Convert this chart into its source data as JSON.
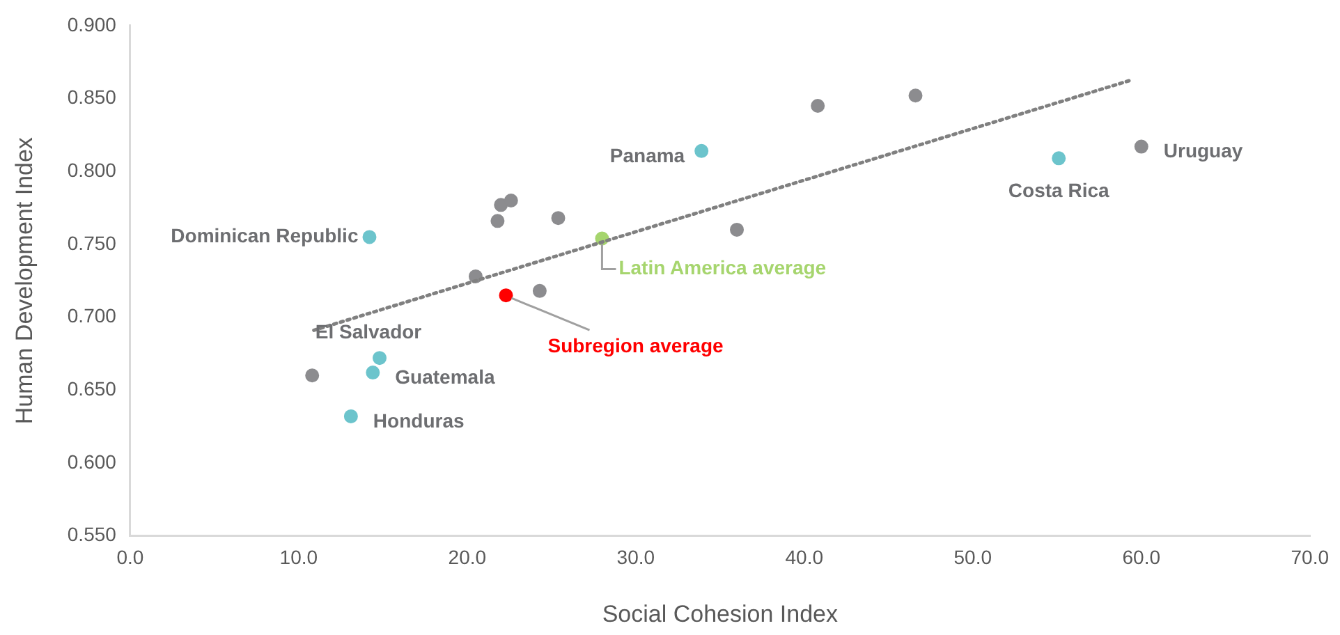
{
  "chart_data": {
    "type": "scatter",
    "xlabel": "Social Cohesion Index",
    "ylabel": "Human Development Index",
    "xlim": [
      0,
      70
    ],
    "xticks": [
      {
        "value": 0,
        "label": "0.0"
      },
      {
        "value": 10,
        "label": "10.0"
      },
      {
        "value": 20,
        "label": "20.0"
      },
      {
        "value": 30,
        "label": "30.0"
      },
      {
        "value": 40,
        "label": "40.0"
      },
      {
        "value": 50,
        "label": "50.0"
      },
      {
        "value": 60,
        "label": "60.0"
      },
      {
        "value": 70,
        "label": "70.0"
      }
    ],
    "ylim": [
      0.55,
      0.9
    ],
    "yticks": [
      {
        "value": 0.55,
        "label": "0.550"
      },
      {
        "value": 0.6,
        "label": "0.600"
      },
      {
        "value": 0.65,
        "label": "0.650"
      },
      {
        "value": 0.7,
        "label": "0.700"
      },
      {
        "value": 0.75,
        "label": "0.750"
      },
      {
        "value": 0.8,
        "label": "0.800"
      },
      {
        "value": 0.85,
        "label": "0.850"
      },
      {
        "value": 0.9,
        "label": "0.900"
      }
    ],
    "grid": false,
    "legend": false,
    "marker": "circle",
    "series": [
      {
        "type": "line",
        "line_style": "dotted",
        "marker": "none",
        "color": "#808080",
        "x": [
          10.9,
          59.5
        ],
        "values": [
          0.691,
          0.863
        ]
      },
      {
        "color": "#8c8c8f",
        "x": [
          10.8,
          20.5,
          22.0,
          22.6,
          21.8,
          25.4,
          36.0,
          24.3,
          40.8,
          46.6,
          60.0
        ],
        "values": [
          0.66,
          0.728,
          0.777,
          0.78,
          0.766,
          0.768,
          0.76,
          0.718,
          0.845,
          0.852,
          0.817
        ],
        "value_labels": [
          null,
          null,
          null,
          null,
          null,
          null,
          null,
          null,
          null,
          null,
          "Uruguay"
        ]
      },
      {
        "color": "#6cc4cc",
        "x": [
          14.2,
          33.9,
          55.1,
          14.8,
          14.4,
          13.1
        ],
        "values": [
          0.755,
          0.814,
          0.809,
          0.672,
          0.662,
          0.632
        ],
        "value_labels": [
          "Dominican Republic",
          "Panama",
          "Costa Rica",
          "El Salvador",
          "Guatemala",
          "Honduras"
        ]
      },
      {
        "name": "Subregion average",
        "color": "#ff0000",
        "x": [
          22.3
        ],
        "values": [
          0.715
        ]
      },
      {
        "name": "Latin America average",
        "color": "#a6d56e",
        "x": [
          28.0
        ],
        "values": [
          0.754
        ]
      }
    ]
  }
}
